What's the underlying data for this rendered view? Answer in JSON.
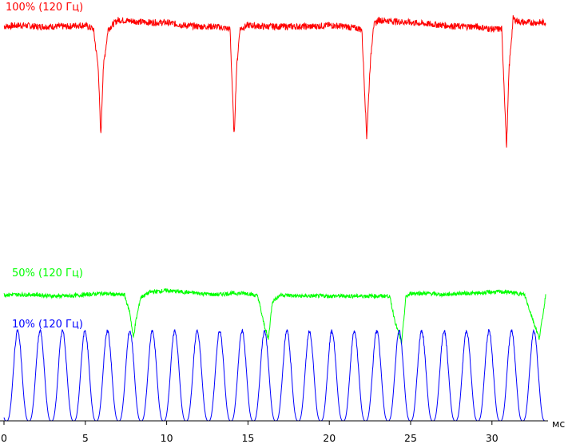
{
  "chart_data": {
    "type": "line",
    "title": "",
    "xlabel": "мс",
    "ylabel": "",
    "xlim": [
      0,
      33.3
    ],
    "x_ticks": [
      0,
      5,
      10,
      15,
      20,
      25,
      30
    ],
    "grid": false,
    "series": [
      {
        "name": "100% (120 Гц)",
        "color": "#ff0000",
        "x": [
          0,
          1,
          2,
          3,
          4,
          4.5,
          5,
          5.5,
          5.8,
          5.95,
          6.1,
          6.4,
          7,
          8,
          9,
          10,
          11,
          12,
          13,
          13.9,
          14.15,
          14.3,
          14.5,
          15,
          16,
          17,
          18,
          19,
          20,
          21,
          22,
          22.3,
          22.5,
          22.7,
          23,
          24,
          25,
          26,
          27,
          28,
          29,
          30,
          30.6,
          30.9,
          31.05,
          31.3,
          31.6,
          32,
          33.3
        ],
        "values": [
          0.92,
          0.93,
          0.92,
          0.92,
          0.92,
          0.93,
          0.93,
          0.9,
          0.6,
          0.08,
          0.6,
          0.9,
          0.97,
          0.96,
          0.95,
          0.95,
          0.93,
          0.92,
          0.92,
          0.9,
          0.07,
          0.6,
          0.9,
          0.93,
          0.92,
          0.92,
          0.92,
          0.92,
          0.93,
          0.92,
          0.9,
          0.08,
          0.6,
          0.92,
          0.97,
          0.96,
          0.95,
          0.94,
          0.93,
          0.92,
          0.92,
          0.9,
          0.9,
          0.0,
          0.6,
          0.98,
          0.96,
          0.95,
          0.95
        ],
        "noise": 0.05
      },
      {
        "name": "50% (120 Гц)",
        "color": "#00ff00",
        "x": [
          0,
          1,
          2,
          3,
          4,
          5,
          6,
          7,
          7.4,
          7.75,
          7.95,
          8.1,
          8.4,
          9,
          10,
          11,
          12,
          13,
          14,
          15,
          15.6,
          15.95,
          16.25,
          16.5,
          17,
          18,
          19,
          20,
          21,
          22,
          23,
          23.7,
          24.05,
          24.45,
          24.7,
          25,
          26,
          27,
          28,
          29,
          30,
          31,
          32,
          32.9,
          33.1,
          33.3
        ],
        "values": [
          0.5,
          0.5,
          0.5,
          0.49,
          0.49,
          0.5,
          0.51,
          0.5,
          0.5,
          0.36,
          0.18,
          0.3,
          0.48,
          0.52,
          0.53,
          0.52,
          0.51,
          0.5,
          0.51,
          0.51,
          0.49,
          0.3,
          0.17,
          0.45,
          0.5,
          0.49,
          0.49,
          0.49,
          0.49,
          0.49,
          0.49,
          0.49,
          0.3,
          0.14,
          0.48,
          0.51,
          0.51,
          0.5,
          0.51,
          0.51,
          0.52,
          0.52,
          0.5,
          0.18,
          0.32,
          0.5
        ],
        "noise": 0.03
      },
      {
        "name": "10% (120 Гц)",
        "color": "#0000ff",
        "type": "pulse",
        "period": 1.38,
        "peak": 0.3,
        "baseline": 0.0,
        "start": 0.15
      }
    ]
  }
}
